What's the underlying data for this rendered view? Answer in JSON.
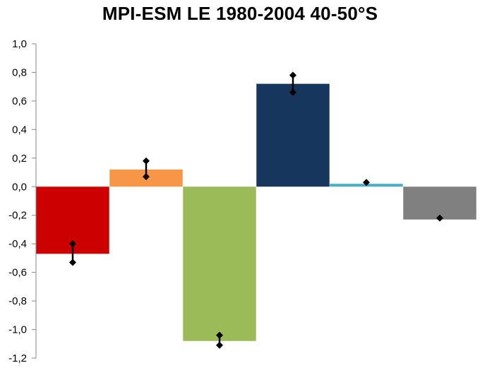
{
  "chart_data": {
    "type": "bar",
    "title": "MPI-ESM LE 1980-2004 40-50°S",
    "xlabel": "",
    "ylabel": "",
    "ylim": [
      -1.2,
      1.0
    ],
    "yticks": [
      1.0,
      0.8,
      0.6,
      0.4,
      0.2,
      0.0,
      -0.2,
      -0.4,
      -0.6,
      -0.8,
      -1.0,
      -1.2
    ],
    "ytick_labels": [
      "1,0",
      "0,8",
      "0,6",
      "0,4",
      "0,2",
      "0,0",
      "-0,2",
      "-0,4",
      "-0,6",
      "-0,8",
      "-1,0",
      "-1,2"
    ],
    "grid": false,
    "legend": "none",
    "bars": [
      {
        "value": -0.47,
        "color": "#cc0000",
        "error_low": -0.53,
        "error_high": -0.4
      },
      {
        "value": 0.12,
        "color": "#f79646",
        "error_low": 0.07,
        "error_high": 0.18
      },
      {
        "value": -1.08,
        "color": "#9bbb59",
        "error_low": -1.11,
        "error_high": -1.04
      },
      {
        "value": 0.72,
        "color": "#17365d",
        "error_low": 0.66,
        "error_high": 0.78
      },
      {
        "value": 0.02,
        "color": "#4bacc6",
        "error_low": 0.03,
        "error_high": 0.03
      },
      {
        "value": -0.23,
        "color": "#808080",
        "error_low": -0.22,
        "error_high": -0.22
      }
    ]
  }
}
